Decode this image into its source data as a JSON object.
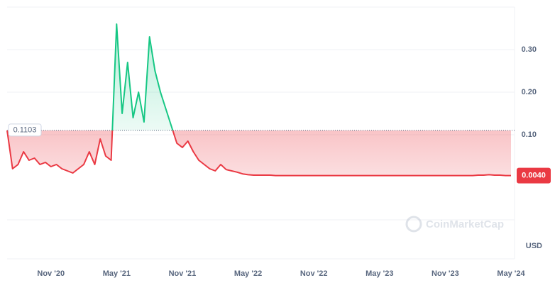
{
  "chart_data": {
    "type": "line",
    "baseline": {
      "value": 0.1103,
      "label": "0.1103"
    },
    "current_price": {
      "value": 0.004,
      "label": "0.0040"
    },
    "currency": "USD",
    "watermark": "CoinMarketCap",
    "colors": {
      "above": "#16c784",
      "below": "#ea3943"
    },
    "categories": [
      null,
      null,
      null,
      null,
      null,
      null,
      null,
      null,
      "Nov '20",
      null,
      null,
      null,
      null,
      null,
      null,
      null,
      null,
      null,
      null,
      null,
      "May '21",
      null,
      null,
      null,
      null,
      null,
      null,
      null,
      null,
      null,
      null,
      null,
      "Nov '21",
      null,
      null,
      null,
      null,
      null,
      null,
      null,
      null,
      null,
      null,
      null,
      "May '22",
      null,
      null,
      null,
      null,
      null,
      null,
      null,
      null,
      null,
      null,
      null,
      "Nov '22",
      null,
      null,
      null,
      null,
      null,
      null,
      null,
      null,
      null,
      null,
      null,
      "May '23",
      null,
      null,
      null,
      null,
      null,
      null,
      null,
      null,
      null,
      null,
      null,
      "Nov '23",
      null,
      null,
      null,
      null,
      null,
      null,
      null,
      null,
      null,
      null,
      null,
      "May '24"
    ],
    "values": [
      0.11,
      0.02,
      0.03,
      0.06,
      0.04,
      0.045,
      0.03,
      0.035,
      0.025,
      0.03,
      0.02,
      0.015,
      0.01,
      0.02,
      0.03,
      0.06,
      0.03,
      0.09,
      0.05,
      0.04,
      0.36,
      0.15,
      0.27,
      0.14,
      0.2,
      0.13,
      0.33,
      0.25,
      0.2,
      0.16,
      0.12,
      0.08,
      0.07,
      0.085,
      0.06,
      0.04,
      0.03,
      0.02,
      0.015,
      0.03,
      0.018,
      0.015,
      0.012,
      0.008,
      0.006,
      0.005,
      0.005,
      0.005,
      0.005,
      0.004,
      0.004,
      0.004,
      0.004,
      0.004,
      0.004,
      0.004,
      0.004,
      0.004,
      0.004,
      0.004,
      0.004,
      0.004,
      0.004,
      0.004,
      0.004,
      0.004,
      0.004,
      0.004,
      0.004,
      0.004,
      0.004,
      0.004,
      0.004,
      0.004,
      0.004,
      0.004,
      0.004,
      0.004,
      0.004,
      0.004,
      0.004,
      0.004,
      0.004,
      0.004,
      0.004,
      0.004,
      0.005,
      0.005,
      0.006,
      0.005,
      0.005,
      0.004,
      0.004
    ],
    "ylim": [
      -0.1,
      0.4
    ],
    "yticks": [
      {
        "value": 0.1,
        "label": "0.10"
      },
      {
        "value": 0.2,
        "label": "0.20"
      },
      {
        "value": 0.3,
        "label": "0.30"
      }
    ],
    "grid": true
  }
}
